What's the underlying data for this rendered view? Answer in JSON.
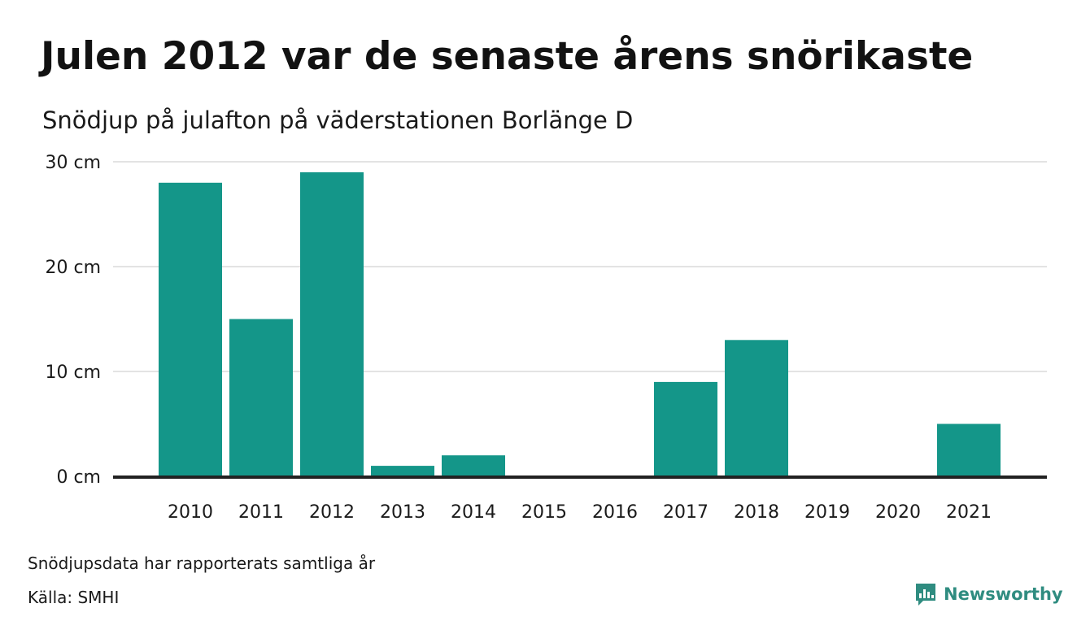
{
  "header": {
    "title": "Julen 2012 var de senaste årens snörikaste",
    "subtitle": "Snödjup på julafton på väderstationen Borlänge D"
  },
  "footer": {
    "note": "Snödjupsdata har rapporterats samtliga år",
    "source": "Källa: SMHI",
    "brand": "Newsworthy"
  },
  "colors": {
    "bar": "#149689",
    "grid": "#e3e3e3",
    "axis": "#222222",
    "brand": "#2f8c80"
  },
  "chart_data": {
    "type": "bar",
    "title": "Julen 2012 var de senaste årens snörikaste",
    "subtitle": "Snödjup på julafton på väderstationen Borlänge D",
    "categories": [
      "2010",
      "2011",
      "2012",
      "2013",
      "2014",
      "2015",
      "2016",
      "2017",
      "2018",
      "2019",
      "2020",
      "2021"
    ],
    "values": [
      28,
      15,
      29,
      1,
      2,
      0,
      0,
      9,
      13,
      0,
      0,
      5
    ],
    "ylim": [
      0,
      30
    ],
    "yticks": [
      0,
      10,
      20,
      30
    ],
    "ytick_labels": [
      "0 cm",
      "10 cm",
      "20 cm",
      "30 cm"
    ],
    "grid": true,
    "legend": "none"
  }
}
